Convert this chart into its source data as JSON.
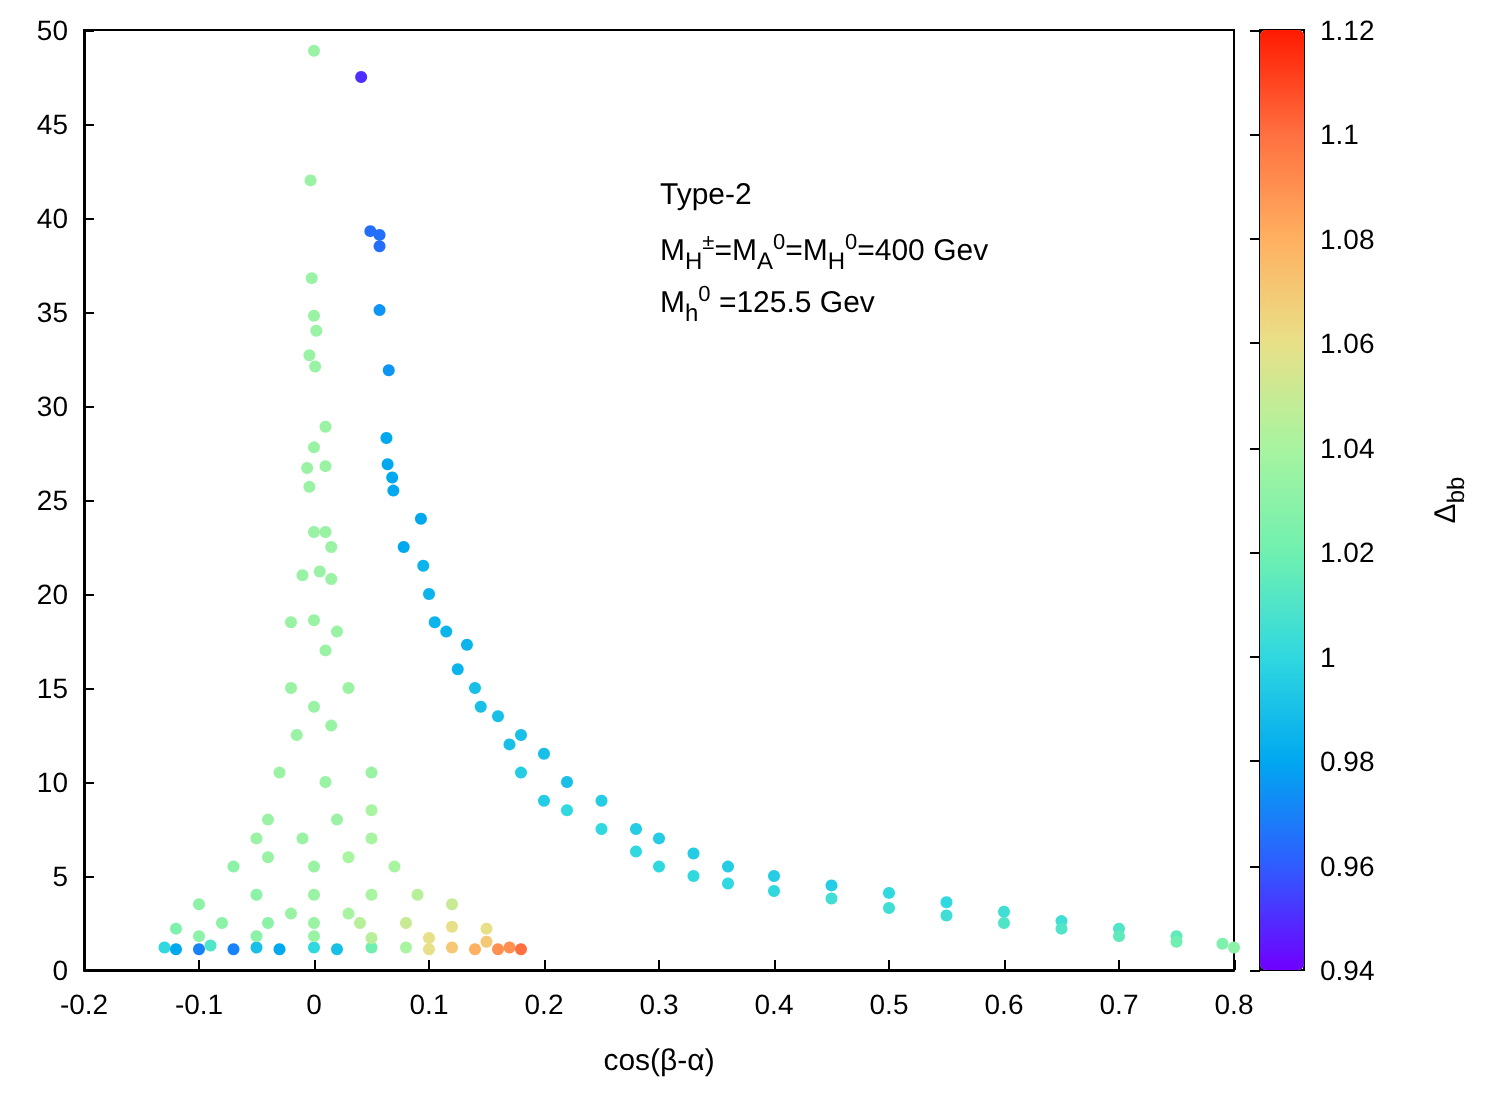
{
  "chart_data": {
    "type": "scatter",
    "xlabel": "cos(β-α)",
    "clabel": "Δ$_{bb}$",
    "annotations": [
      "Type-2",
      "M$_{H}$$^{±}$=M$_{A}$$^{0}$=M$_{H}$$^{0}$=400 Gev",
      "M$_{h}$$^{0}$ =125.5 Gev"
    ],
    "xlim": [
      -0.2,
      0.8
    ],
    "xticks": [
      -0.2,
      -0.1,
      0,
      0.1,
      0.2,
      0.3,
      0.4,
      0.5,
      0.6,
      0.7,
      0.8
    ],
    "ylim": [
      0,
      50
    ],
    "yticks": [
      0,
      5,
      10,
      15,
      20,
      25,
      30,
      35,
      40,
      45,
      50
    ],
    "clim": [
      0.94,
      1.12
    ],
    "cticks": [
      0.94,
      0.96,
      0.98,
      1,
      1.02,
      1.04,
      1.06,
      1.08,
      1.1,
      1.12
    ],
    "marker": "circle",
    "x": [
      0,
      -0.003,
      -0.002,
      0,
      0.002,
      -0.004,
      0.001,
      0.01,
      0,
      -0.006,
      0.01,
      -0.004,
      0.041,
      0.049,
      0.057,
      0.057,
      0.057,
      0.065,
      0.063,
      0.064,
      0.068,
      0.069,
      0.078,
      0.093,
      0.095,
      0.1,
      0.105,
      0.115,
      0.125,
      0.133,
      0.14,
      0.145,
      0.16,
      0.17,
      0.18,
      0.18,
      0.2,
      0.2,
      0.22,
      0.22,
      0.25,
      0.25,
      0.28,
      0.28,
      0.3,
      0.3,
      0.33,
      0.33,
      0.36,
      0.36,
      0.4,
      0.4,
      0.45,
      0.45,
      0.5,
      0.5,
      0.55,
      0.55,
      0.6,
      0.6,
      0.65,
      0.65,
      0.7,
      0.7,
      0.75,
      0.75,
      0.79,
      0.8,
      0,
      0.01,
      0.015,
      -0.01,
      0.005,
      0.015,
      -0.02,
      0,
      0.02,
      0.01,
      -0.02,
      0.03,
      0,
      0.015,
      -0.015,
      -0.03,
      0.05,
      0.01,
      -0.04,
      0.05,
      0.02,
      -0.01,
      -0.05,
      0.05,
      -0.07,
      0.07,
      0,
      -0.04,
      0.03,
      -0.1,
      0.12,
      -0.05,
      0,
      0.05,
      0.09,
      -0.12,
      0.15,
      -0.08,
      -0.04,
      0,
      0.04,
      0.08,
      0.12,
      -0.13,
      -0.12,
      -0.1,
      -0.09,
      -0.07,
      -0.05,
      -0.03,
      0,
      0.02,
      0.05,
      0.08,
      0.1,
      0.12,
      0.14,
      0.16,
      0.17,
      0.18,
      -0.1,
      -0.05,
      0,
      0.05,
      0.1,
      0.15,
      0.03,
      -0.02
    ],
    "values": [
      48.9,
      42,
      36.8,
      34.8,
      34,
      32.7,
      32.1,
      28.9,
      27.8,
      26.7,
      26.8,
      25.7,
      47.5,
      39.3,
      39.1,
      38.5,
      35.1,
      31.9,
      28.3,
      26.9,
      26.2,
      25.5,
      22.5,
      24,
      21.5,
      20,
      18.5,
      18,
      16,
      17.3,
      15,
      14,
      13.5,
      12,
      12.5,
      10.5,
      11.5,
      9,
      10,
      8.5,
      9,
      7.5,
      7.5,
      6.3,
      7,
      5.5,
      6.2,
      5,
      5.5,
      4.6,
      5,
      4.2,
      4.5,
      3.8,
      4.1,
      3.3,
      3.6,
      2.9,
      3.1,
      2.5,
      2.6,
      2.2,
      2.2,
      1.8,
      1.8,
      1.5,
      1.4,
      1.2,
      23.3,
      23.3,
      22.5,
      21,
      21.2,
      20.8,
      18.5,
      18.6,
      18,
      17,
      15,
      15,
      14,
      13,
      12.5,
      10.5,
      10.5,
      10,
      8,
      8.5,
      8,
      7,
      7,
      7,
      5.5,
      5.5,
      5.5,
      6,
      6,
      3.5,
      3.5,
      4,
      4,
      4,
      4,
      2.2,
      2.2,
      2.5,
      2.5,
      2.5,
      2.5,
      2.5,
      2.3,
      1.2,
      1.1,
      1.1,
      1.3,
      1.1,
      1.2,
      1.1,
      1.2,
      1.1,
      1.2,
      1.2,
      1.1,
      1.2,
      1.1,
      1.1,
      1.2,
      1.1,
      1.8,
      1.8,
      1.8,
      1.7,
      1.7,
      1.5,
      3,
      3
    ],
    "cvalues": [
      1.035,
      1.035,
      1.035,
      1.035,
      1.035,
      1.035,
      1.035,
      1.035,
      1.035,
      1.035,
      1.035,
      1.035,
      0.95,
      0.965,
      0.965,
      0.965,
      0.975,
      0.975,
      0.98,
      0.98,
      0.98,
      0.98,
      0.98,
      0.98,
      0.985,
      0.985,
      0.985,
      0.985,
      0.985,
      0.985,
      0.99,
      0.99,
      0.99,
      0.99,
      0.99,
      0.995,
      0.99,
      0.995,
      0.99,
      1,
      0.995,
      1,
      0.995,
      1,
      0.995,
      1,
      0.995,
      1,
      0.995,
      1,
      0.995,
      1,
      0.995,
      1.005,
      1,
      1.005,
      1,
      1.005,
      1.005,
      1.01,
      1.005,
      1.01,
      1.01,
      1.015,
      1.015,
      1.02,
      1.025,
      1.03,
      1.035,
      1.035,
      1.035,
      1.035,
      1.035,
      1.035,
      1.035,
      1.035,
      1.035,
      1.035,
      1.035,
      1.035,
      1.035,
      1.035,
      1.035,
      1.035,
      1.035,
      1.035,
      1.035,
      1.04,
      1.035,
      1.035,
      1.035,
      1.04,
      1.03,
      1.04,
      1.035,
      1.035,
      1.04,
      1.03,
      1.05,
      1.03,
      1.035,
      1.04,
      1.045,
      1.025,
      1.06,
      1.03,
      1.03,
      1.035,
      1.045,
      1.05,
      1.06,
      1,
      0.98,
      0.97,
      1.01,
      0.97,
      0.99,
      0.98,
      1,
      0.99,
      1.02,
      1.04,
      1.06,
      1.07,
      1.08,
      1.09,
      1.09,
      1.1,
      1.03,
      1.03,
      1.035,
      1.045,
      1.06,
      1.07,
      1.04,
      1.035
    ]
  }
}
